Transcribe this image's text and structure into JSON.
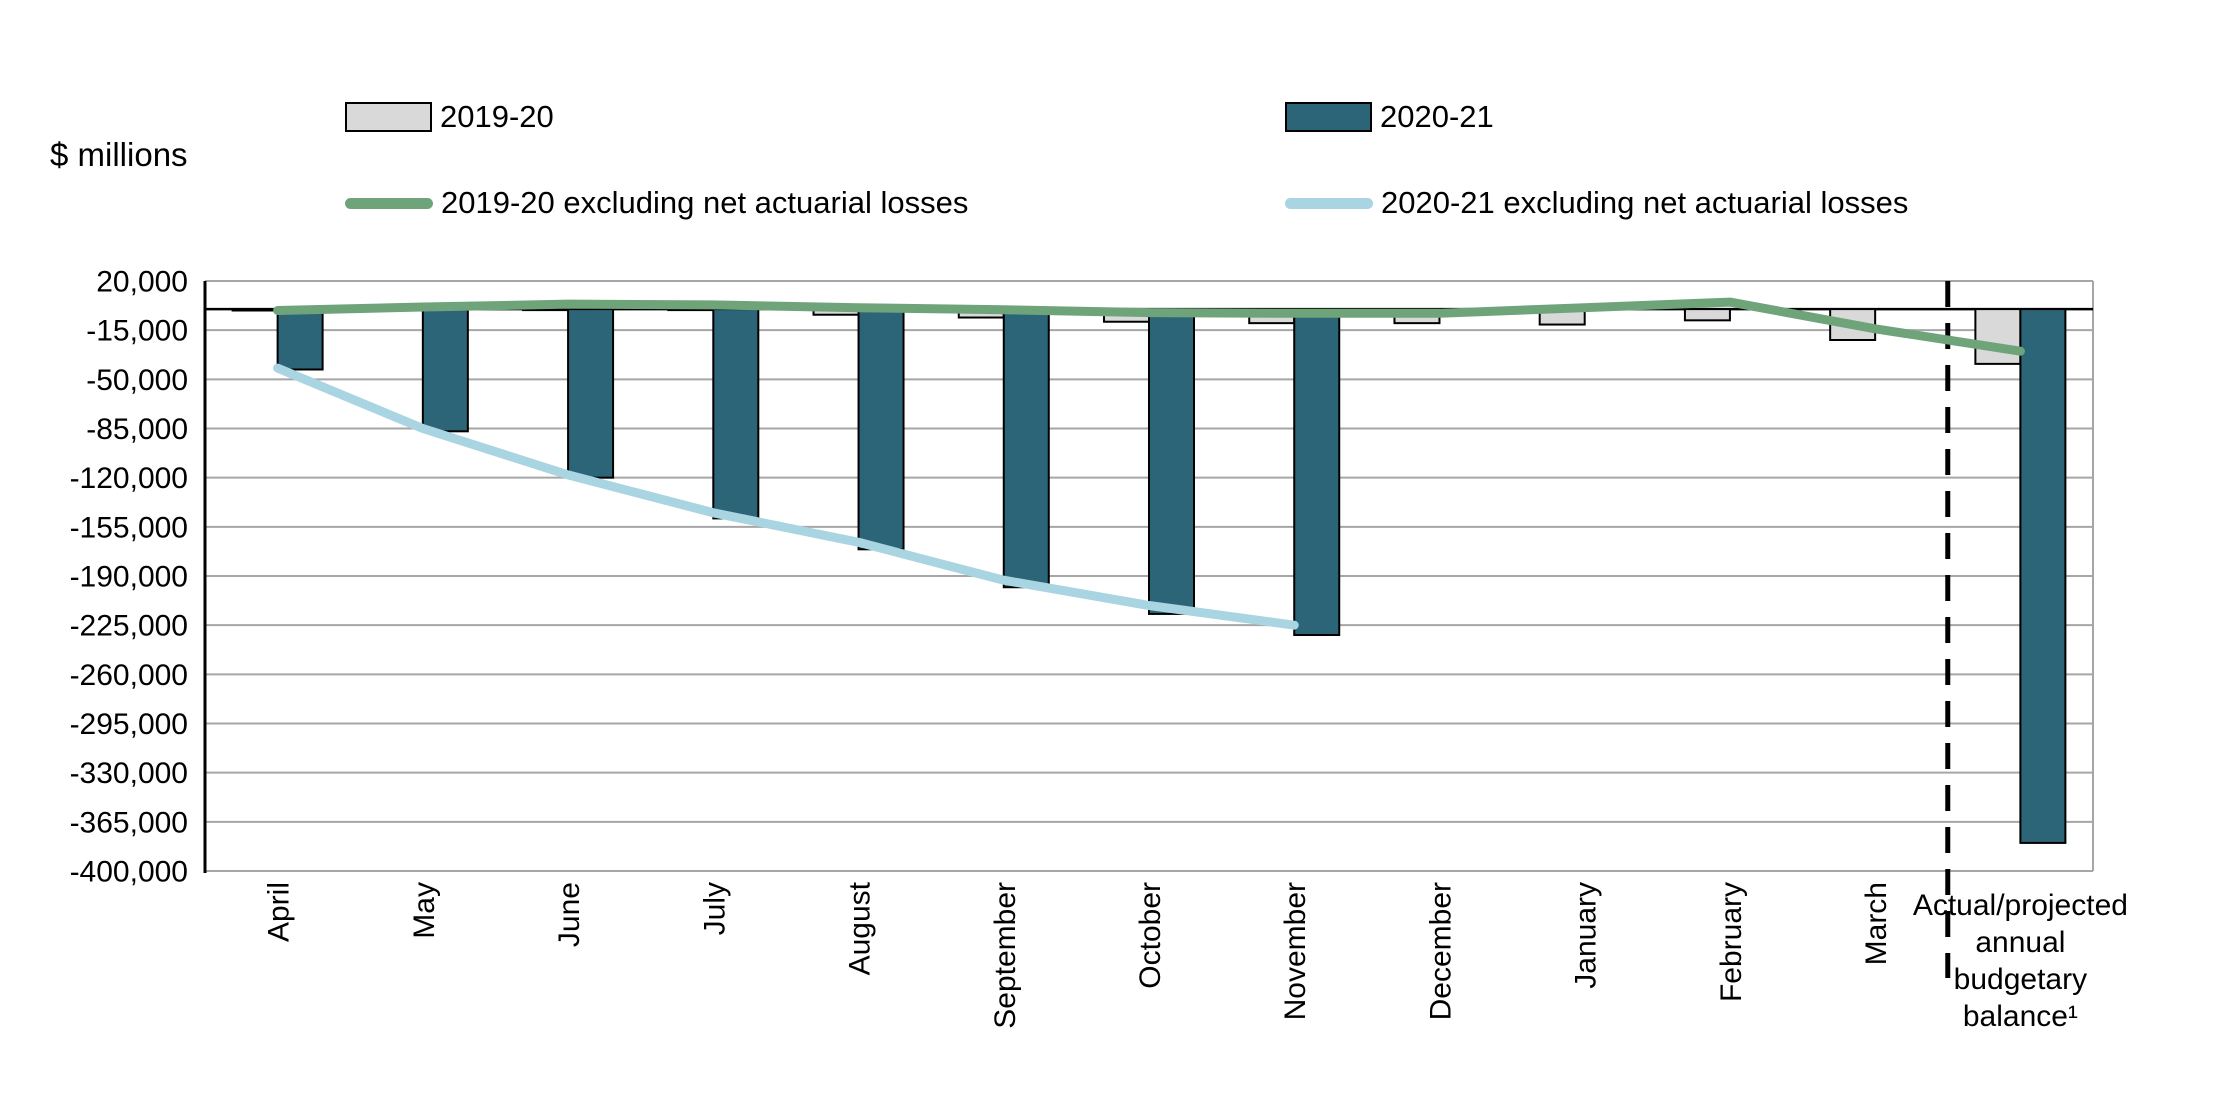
{
  "labels": {
    "y_axis_title": "$ millions"
  },
  "legend": {
    "position": "top",
    "items": [
      {
        "label": "2019-20",
        "type": "box",
        "color": "#D9D9D9"
      },
      {
        "label": "2020-21",
        "type": "box",
        "color": "#2B6577"
      },
      {
        "label": "2019-20 excluding net actuarial losses",
        "type": "line",
        "color": "#6FA47B"
      },
      {
        "label": "2020-21 excluding net actuarial losses",
        "type": "line",
        "color": "#A9D4E1"
      }
    ]
  },
  "chart_data": {
    "type": "bar",
    "subtype": "bar-line-combo",
    "title": "",
    "xlabel": "",
    "ylabel": "$ millions",
    "grid": true,
    "legend_position": "top",
    "ylim": [
      -400000,
      20000
    ],
    "categories": [
      "April",
      "May",
      "June",
      "July",
      "August",
      "September",
      "October",
      "November",
      "December",
      "January",
      "February",
      "March",
      "Actual/projected annual budgetary balance¹"
    ],
    "last_category_lines": [
      "Actual/projected",
      "annual",
      "budgetary",
      "balance¹"
    ],
    "divider_after_category_index": 11,
    "y_axis": {
      "min": -400000,
      "max": 20000,
      "step": 35000,
      "tick_labels": [
        "20,000",
        "-15,000",
        "-50,000",
        "-85,000",
        "-120,000",
        "-155,000",
        "-190,000",
        "-225,000",
        "-260,000",
        "-295,000",
        "-330,000",
        "-365,000",
        "-400,000"
      ]
    },
    "series": [
      {
        "name": "2019-20",
        "type": "bar",
        "color": "#D9D9D9",
        "values": [
          -1000,
          -500,
          -500,
          -500,
          -4000,
          -6000,
          -9000,
          -10000,
          -10000,
          -11000,
          -8000,
          -22000,
          -39000
        ]
      },
      {
        "name": "2020-21",
        "type": "bar",
        "color": "#2B6577",
        "values": [
          -43000,
          -87000,
          -120000,
          -149000,
          -171000,
          -198000,
          -217000,
          -232000,
          null,
          null,
          null,
          null,
          -380000
        ]
      },
      {
        "name": "2019-20 excluding net actuarial losses",
        "type": "line",
        "color": "#6FA47B",
        "values": [
          -1000,
          1500,
          3500,
          3000,
          1000,
          -500,
          -2500,
          -3000,
          -3000,
          1000,
          5000,
          -14000,
          -30000
        ]
      },
      {
        "name": "2020-21 excluding net actuarial losses",
        "type": "line",
        "color": "#A9D4E1",
        "values": [
          -42000,
          -85000,
          -118000,
          -145000,
          -166000,
          -193000,
          -211000,
          -225000,
          null,
          null,
          null,
          null,
          null
        ]
      }
    ],
    "style": {
      "gridline_color": "#A6A6A6",
      "axis_color": "#000000",
      "bar_outline_color": "#000000",
      "divider_color": "#000000"
    }
  }
}
